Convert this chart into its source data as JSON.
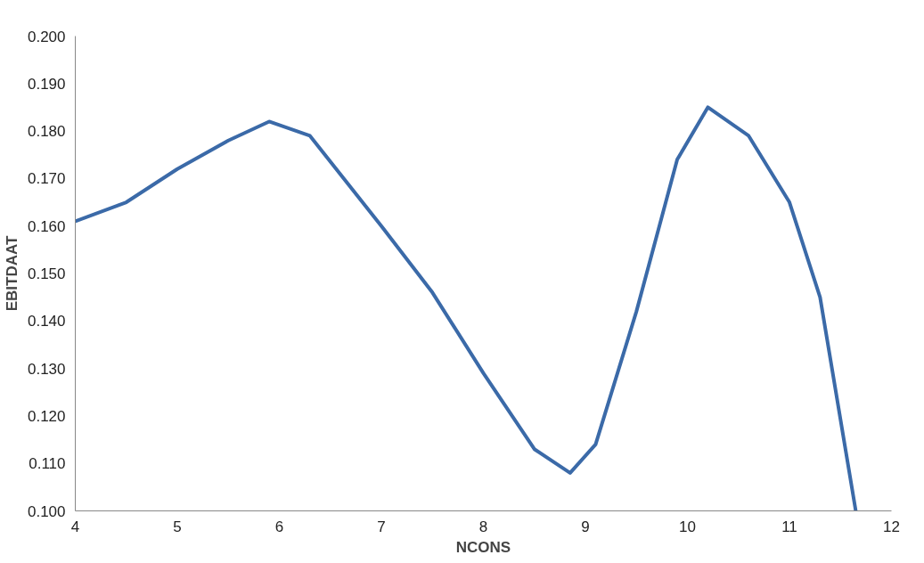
{
  "chart_data": {
    "type": "line",
    "xlabel": "NCONS",
    "ylabel": "EBITDAAT",
    "series": [
      {
        "color": "#3b6aa8",
        "x": [
          4,
          4.5,
          5,
          5.5,
          5.9,
          6.3,
          7,
          7.5,
          8,
          8.5,
          8.85,
          9.1,
          9.5,
          9.9,
          10.2,
          10.6,
          11,
          11.3,
          11.65
        ],
        "values": [
          0.161,
          0.165,
          0.172,
          0.178,
          0.182,
          0.179,
          0.16,
          0.146,
          0.129,
          0.113,
          0.108,
          0.114,
          0.142,
          0.174,
          0.185,
          0.179,
          0.165,
          0.145,
          0.1
        ]
      }
    ],
    "xlim": [
      4,
      12
    ],
    "xticks": [
      4,
      5,
      6,
      7,
      8,
      9,
      10,
      11,
      12
    ],
    "ylim": [
      0.1,
      0.2
    ],
    "yticks": [
      {
        "value": 0.1,
        "label": "0.100"
      },
      {
        "value": 0.11,
        "label": "0.110"
      },
      {
        "value": 0.12,
        "label": "0.120"
      },
      {
        "value": 0.13,
        "label": "0.130"
      },
      {
        "value": 0.14,
        "label": "0.140"
      },
      {
        "value": 0.15,
        "label": "0.150"
      },
      {
        "value": 0.16,
        "label": "0.160"
      },
      {
        "value": 0.17,
        "label": "0.170"
      },
      {
        "value": 0.18,
        "label": "0.180"
      },
      {
        "value": 0.19,
        "label": "0.190"
      },
      {
        "value": 0.2,
        "label": "0.200"
      }
    ],
    "grid": false,
    "marker": "none",
    "line_style": "solid"
  }
}
